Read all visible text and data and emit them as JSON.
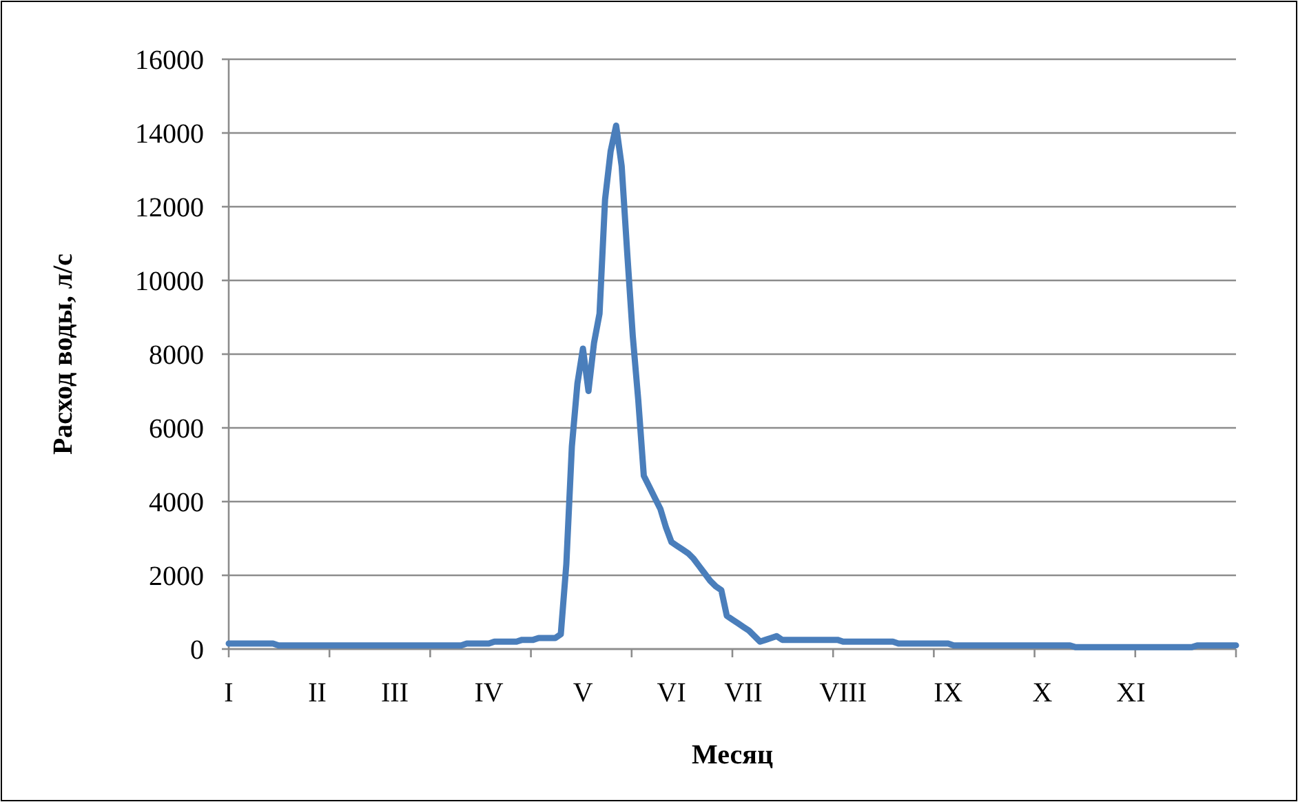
{
  "chart_data": {
    "type": "line",
    "xlabel": "Месяц",
    "ylabel": "Расход воды, л/с",
    "categories": [
      "I",
      null,
      null,
      null,
      null,
      null,
      null,
      null,
      null,
      null,
      null,
      null,
      null,
      null,
      null,
      null,
      "II",
      null,
      null,
      null,
      null,
      null,
      null,
      null,
      null,
      null,
      null,
      null,
      null,
      null,
      "III",
      null,
      null,
      null,
      null,
      null,
      null,
      null,
      null,
      null,
      null,
      null,
      null,
      null,
      null,
      null,
      null,
      "IV",
      null,
      null,
      null,
      null,
      null,
      null,
      null,
      null,
      null,
      null,
      null,
      null,
      null,
      null,
      null,
      null,
      "V",
      null,
      null,
      null,
      null,
      null,
      null,
      null,
      null,
      null,
      null,
      null,
      null,
      null,
      null,
      null,
      "VI",
      null,
      null,
      null,
      null,
      null,
      null,
      null,
      null,
      null,
      null,
      null,
      null,
      "VII",
      null,
      null,
      null,
      null,
      null,
      null,
      null,
      null,
      null,
      null,
      null,
      null,
      null,
      null,
      null,
      null,
      null,
      "VIII",
      null,
      null,
      null,
      null,
      null,
      null,
      null,
      null,
      null,
      null,
      null,
      null,
      null,
      null,
      null,
      null,
      null,
      null,
      "IX",
      null,
      null,
      null,
      null,
      null,
      null,
      null,
      null,
      null,
      null,
      null,
      null,
      null,
      null,
      null,
      null,
      "X",
      null,
      null,
      null,
      null,
      null,
      null,
      null,
      null,
      null,
      null,
      null,
      null,
      null,
      null,
      null,
      "XI",
      null,
      null,
      null,
      null,
      null,
      null,
      null,
      null,
      null,
      null,
      null,
      null,
      null,
      null,
      null,
      null,
      null,
      null,
      null
    ],
    "series": [
      {
        "color": "#4a7ebb",
        "values": [
          150,
          150,
          150,
          150,
          150,
          150,
          150,
          150,
          150,
          100,
          100,
          100,
          100,
          100,
          100,
          100,
          100,
          100,
          100,
          100,
          100,
          100,
          100,
          100,
          100,
          100,
          100,
          100,
          100,
          100,
          100,
          100,
          100,
          100,
          100,
          100,
          100,
          100,
          100,
          100,
          100,
          100,
          100,
          150,
          150,
          150,
          150,
          150,
          200,
          200,
          200,
          200,
          200,
          250,
          250,
          250,
          300,
          300,
          300,
          300,
          400,
          2300,
          5500,
          7200,
          8150,
          7000,
          8300,
          9100,
          12200,
          13500,
          14200,
          13100,
          10750,
          8500,
          6750,
          4700,
          4400,
          4100,
          3800,
          3300,
          2900,
          2800,
          2700,
          2600,
          2450,
          2250,
          2050,
          1850,
          1700,
          1600,
          900,
          800,
          700,
          600,
          500,
          350,
          200,
          250,
          300,
          350,
          250,
          250,
          250,
          250,
          250,
          250,
          250,
          250,
          250,
          250,
          250,
          200,
          200,
          200,
          200,
          200,
          200,
          200,
          200,
          200,
          200,
          150,
          150,
          150,
          150,
          150,
          150,
          150,
          150,
          150,
          150,
          100,
          100,
          100,
          100,
          100,
          100,
          100,
          100,
          100,
          100,
          100,
          100,
          100,
          100,
          100,
          100,
          100,
          100,
          100,
          100,
          100,
          100,
          50,
          50,
          50,
          50,
          50,
          50,
          50,
          50,
          50,
          50,
          50,
          50,
          50,
          50,
          50,
          50,
          50,
          50,
          50,
          50,
          50,
          50,
          100,
          100,
          100,
          100,
          100,
          100,
          100,
          100
        ]
      }
    ],
    "ylim": [
      0,
      16000
    ],
    "yticks": [
      0,
      2000,
      4000,
      6000,
      8000,
      10000,
      12000,
      14000,
      16000
    ],
    "grid": "y",
    "marker": "none",
    "line_style": "solid"
  }
}
